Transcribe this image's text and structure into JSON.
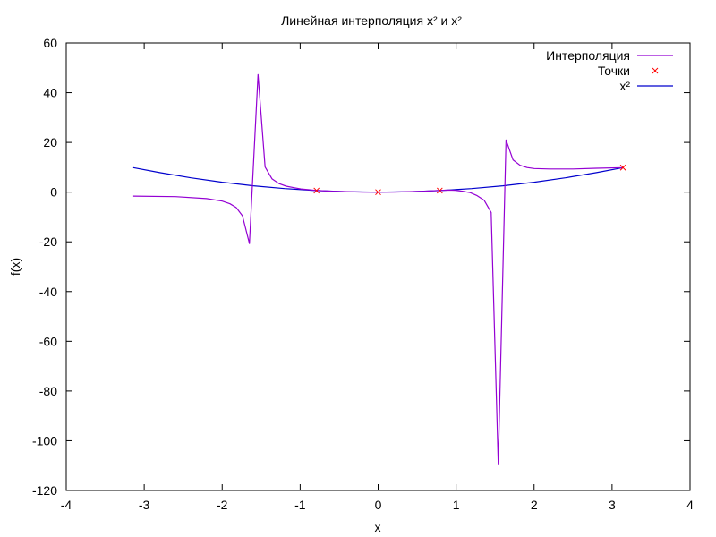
{
  "chart_data": {
    "type": "line",
    "title": "Линейная интерполяция x² и x²",
    "xlabel": "x",
    "ylabel": "f(x)",
    "xlim": [
      -4,
      4
    ],
    "ylim": [
      -120,
      60
    ],
    "x_ticks": [
      -4,
      -3,
      -2,
      -1,
      0,
      1,
      2,
      3,
      4
    ],
    "y_ticks": [
      -120,
      -100,
      -80,
      -60,
      -40,
      -20,
      0,
      20,
      40,
      60
    ],
    "grid": false,
    "legend_position": "top-right",
    "series": [
      {
        "name": "Интерполяция",
        "style": "line",
        "color": "#9400d3",
        "x": [
          -3.14,
          -2.6,
          -2.2,
          -2.0,
          -1.9,
          -1.82,
          -1.74,
          -1.65,
          -1.54,
          -1.45,
          -1.36,
          -1.27,
          -1.18,
          -1.08,
          -0.99,
          -0.9,
          -0.8,
          -0.6,
          -0.4,
          -0.2,
          0.0,
          0.2,
          0.4,
          0.6,
          0.8,
          0.9,
          0.99,
          1.08,
          1.18,
          1.27,
          1.36,
          1.45,
          1.54,
          1.64,
          1.73,
          1.82,
          1.91,
          2.0,
          2.2,
          2.5,
          2.8,
          3.14
        ],
        "y": [
          -1.6,
          -1.8,
          -2.6,
          -3.6,
          -4.7,
          -6.2,
          -9.5,
          -20.7,
          47.3,
          10.1,
          5.3,
          3.4,
          2.4,
          1.8,
          1.3,
          1.0,
          0.7,
          0.4,
          0.2,
          0.04,
          0.0,
          0.04,
          0.2,
          0.4,
          0.7,
          0.8,
          0.7,
          0.4,
          -0.2,
          -1.4,
          -3.3,
          -8.2,
          -109.3,
          21.0,
          13.0,
          10.8,
          9.9,
          9.5,
          9.3,
          9.3,
          9.6,
          9.87
        ]
      },
      {
        "name": "Точки",
        "style": "points",
        "color": "#ff0000",
        "x": [
          -0.79,
          0.0,
          0.79,
          3.14
        ],
        "y": [
          0.62,
          0.0,
          0.62,
          9.87
        ]
      },
      {
        "name": "x²",
        "style": "line",
        "color": "#0000cd",
        "x": [
          -3.14,
          -2.8,
          -2.4,
          -2.0,
          -1.6,
          -1.2,
          -0.8,
          -0.4,
          0.0,
          0.4,
          0.8,
          1.2,
          1.6,
          2.0,
          2.4,
          2.8,
          3.14
        ],
        "y": [
          9.87,
          7.84,
          5.76,
          4.0,
          2.56,
          1.44,
          0.64,
          0.16,
          0.0,
          0.16,
          0.64,
          1.44,
          2.56,
          4.0,
          5.76,
          7.84,
          9.87
        ]
      }
    ]
  }
}
